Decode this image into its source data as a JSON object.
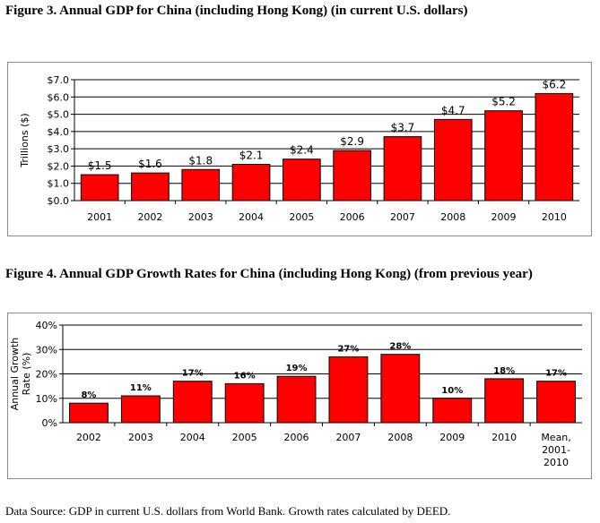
{
  "chart_data": [
    {
      "type": "bar",
      "title": "Figure 3. Annual GDP for China (including Hong Kong) (in current U.S. dollars)",
      "xlabel": "",
      "ylabel": "Trillions ($)",
      "categories": [
        "2001",
        "2002",
        "2003",
        "2004",
        "2005",
        "2006",
        "2007",
        "2008",
        "2009",
        "2010"
      ],
      "values": [
        1.5,
        1.6,
        1.8,
        2.1,
        2.4,
        2.9,
        3.7,
        4.7,
        5.2,
        6.2
      ],
      "data_labels": [
        "$1.5",
        "$1.6",
        "$1.8",
        "$2.1",
        "$2.4",
        "$2.9",
        "$3.7",
        "$4.7",
        "$5.2",
        "$6.2"
      ],
      "ylim": [
        0,
        7
      ],
      "yticks": [
        "$0.0",
        "$1.0",
        "$2.0",
        "$3.0",
        "$4.0",
        "$5.0",
        "$6.0",
        "$7.0"
      ],
      "grid": true,
      "bar_color": "#ff0000"
    },
    {
      "type": "bar",
      "title": "Figure 4. Annual GDP Growth Rates for China (including Hong Kong) (from previous year)",
      "xlabel": "",
      "ylabel": "Annual Growth Rate (%)",
      "categories": [
        "2002",
        "2003",
        "2004",
        "2005",
        "2006",
        "2007",
        "2008",
        "2009",
        "2010",
        "Mean, 2001-2010"
      ],
      "values": [
        8,
        11,
        17,
        16,
        19,
        27,
        28,
        10,
        18,
        17
      ],
      "data_labels": [
        "8%",
        "11%",
        "17%",
        "16%",
        "19%",
        "27%",
        "28%",
        "10%",
        "18%",
        "17%"
      ],
      "ylim": [
        0,
        40
      ],
      "yticks": [
        "0%",
        "10%",
        "20%",
        "30%",
        "40%"
      ],
      "grid": true,
      "bar_color": "#ff0000"
    }
  ],
  "source_note": "Data Source: GDP in current U.S. dollars from World Bank. Growth rates calculated by DEED."
}
